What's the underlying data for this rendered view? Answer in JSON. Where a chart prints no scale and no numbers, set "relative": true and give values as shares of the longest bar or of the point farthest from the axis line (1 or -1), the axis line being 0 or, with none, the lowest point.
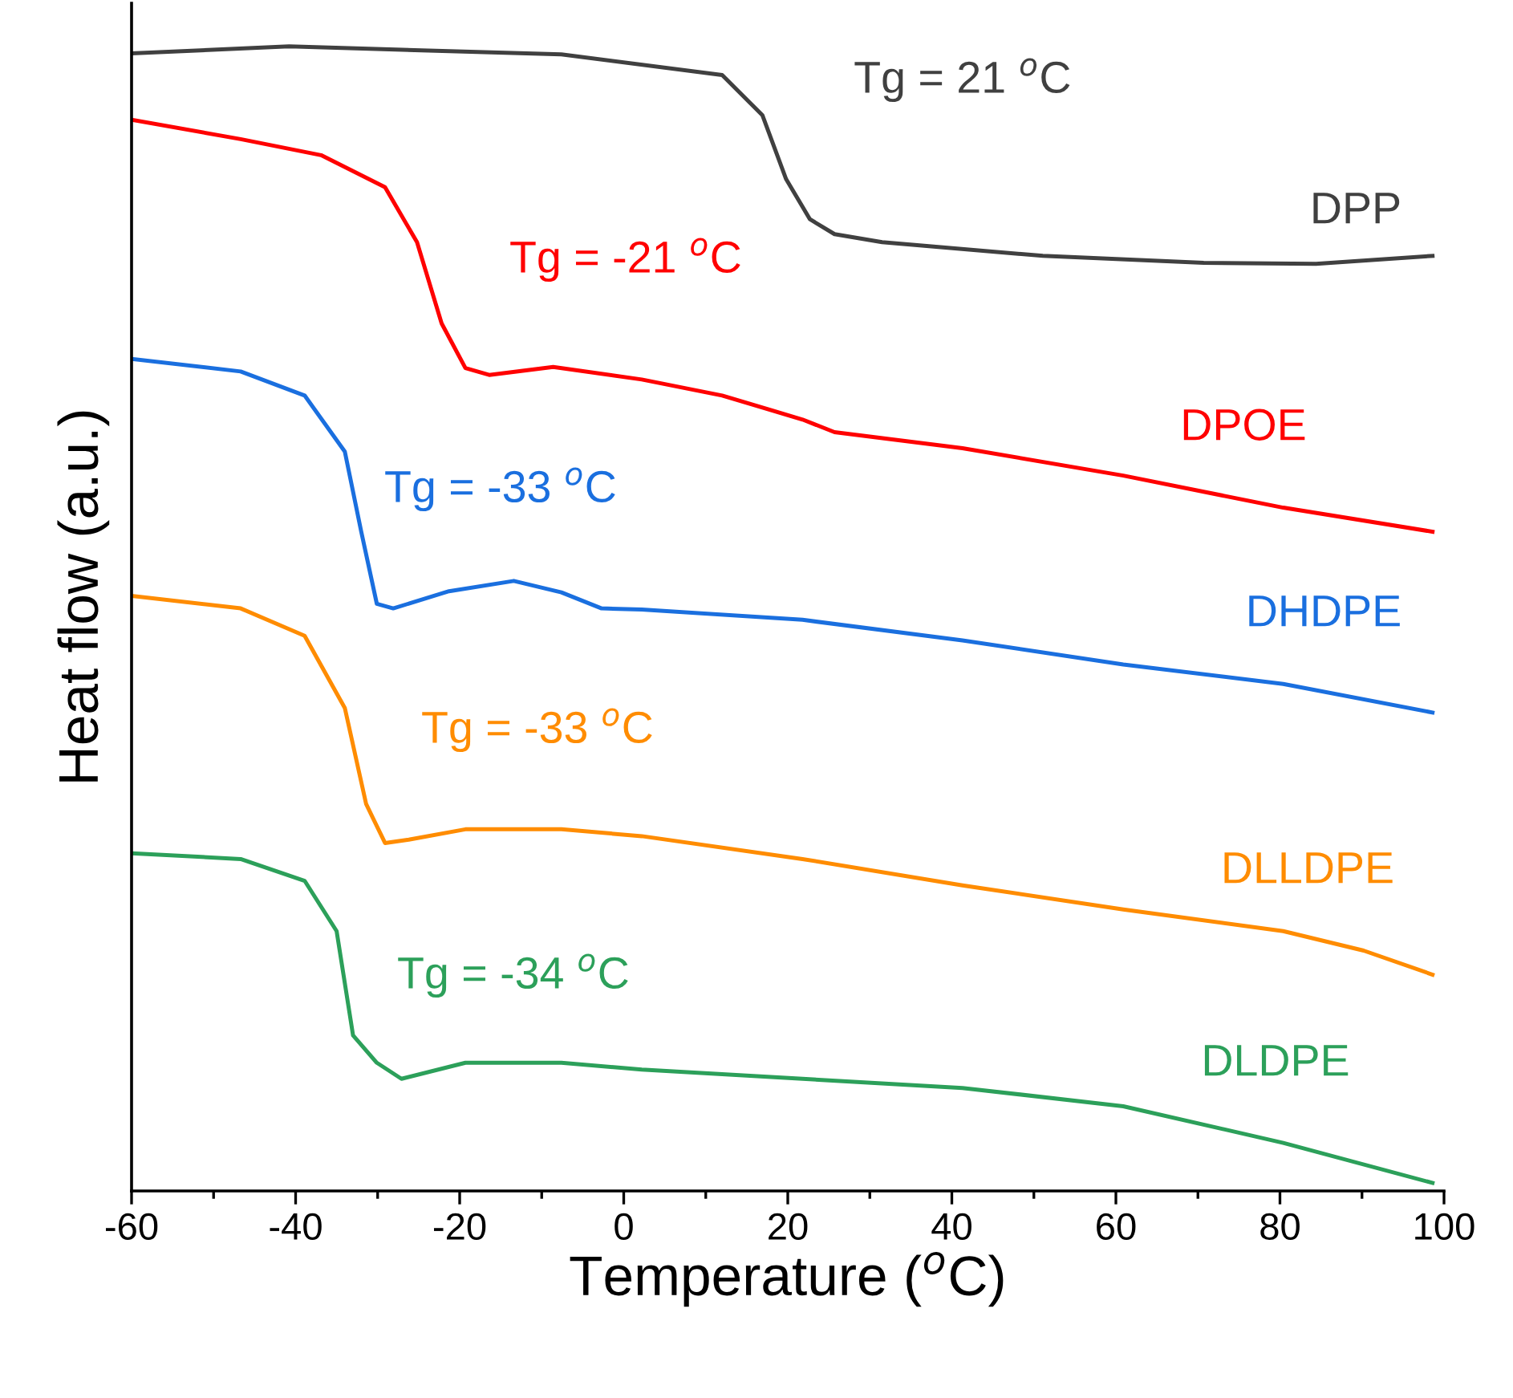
{
  "chart_data": {
    "type": "line",
    "xlabel": "Temperature ($^{o}$C)",
    "ylabel": "Heat flow (a.u.)",
    "relative": true,
    "tick_labels": "x",
    "xlim": [
      -60,
      100
    ],
    "xticks": [
      -60,
      -40,
      -20,
      0,
      20,
      40,
      60,
      80,
      100
    ],
    "series": [
      {
        "name": "DPP",
        "color": "#404040",
        "x": [
          -60,
          -40.8,
          -7.6,
          12.0,
          16.9,
          19.8,
          22.7,
          25.7,
          31.5,
          51.1,
          70.7,
          84.4,
          98.6
        ],
        "values": [
          0.994,
          1,
          0.993,
          0.975,
          0.94,
          0.884,
          0.849,
          0.836,
          0.829,
          0.817,
          0.811,
          0.81,
          0.817
        ]
      },
      {
        "name": "DPOE",
        "color": "#ff0000",
        "x": [
          -60,
          -46.7,
          -36.9,
          -29.1,
          -25.2,
          -22.2,
          -19.3,
          -16.4,
          -8.6,
          2.2,
          12.0,
          21.8,
          25.7,
          41.3,
          60.9,
          80.4,
          98.6
        ],
        "values": [
          0.936,
          0.919,
          0.905,
          0.877,
          0.829,
          0.758,
          0.719,
          0.713,
          0.72,
          0.709,
          0.695,
          0.674,
          0.663,
          0.649,
          0.625,
          0.597,
          0.576
        ]
      },
      {
        "name": "DHDPE",
        "color": "#1a6fdf",
        "x": [
          -60,
          -46.7,
          -38.9,
          -34.0,
          -32.0,
          -30.1,
          -28.1,
          -21.3,
          -13.4,
          -7.6,
          -2.7,
          2.2,
          21.8,
          41.3,
          60.9,
          80.4,
          98.6
        ],
        "values": [
          0.727,
          0.716,
          0.695,
          0.646,
          0.576,
          0.513,
          0.509,
          0.524,
          0.533,
          0.523,
          0.509,
          0.508,
          0.499,
          0.481,
          0.46,
          0.443,
          0.418
        ]
      },
      {
        "name": "DLLDPE",
        "color": "#ff8c00",
        "x": [
          -60,
          -46.7,
          -38.9,
          -34.0,
          -31.4,
          -29.1,
          -26.2,
          -19.3,
          -7.6,
          2.2,
          21.8,
          41.3,
          60.9,
          80.4,
          90.2,
          98.6
        ],
        "values": [
          0.52,
          0.509,
          0.485,
          0.422,
          0.338,
          0.304,
          0.307,
          0.316,
          0.316,
          0.31,
          0.29,
          0.267,
          0.246,
          0.227,
          0.21,
          0.189
        ]
      },
      {
        "name": "DLDPE",
        "color": "#2ca05a",
        "x": [
          -60,
          -46.7,
          -38.9,
          -35.0,
          -33.0,
          -30.1,
          -27.1,
          -19.3,
          -7.6,
          2.2,
          21.8,
          41.3,
          60.9,
          80.4,
          98.6
        ],
        "values": [
          0.295,
          0.29,
          0.271,
          0.227,
          0.136,
          0.112,
          0.098,
          0.112,
          0.112,
          0.106,
          0.098,
          0.09,
          0.074,
          0.042,
          0.007
        ]
      }
    ],
    "annotations": [
      "Tg = 21 $^{o}$C",
      "Tg = -21 $^{o}$C",
      "Tg = -33 $^{o}$C",
      "Tg = -33 $^{o}$C",
      "Tg = -34 $^{o}$C"
    ]
  }
}
